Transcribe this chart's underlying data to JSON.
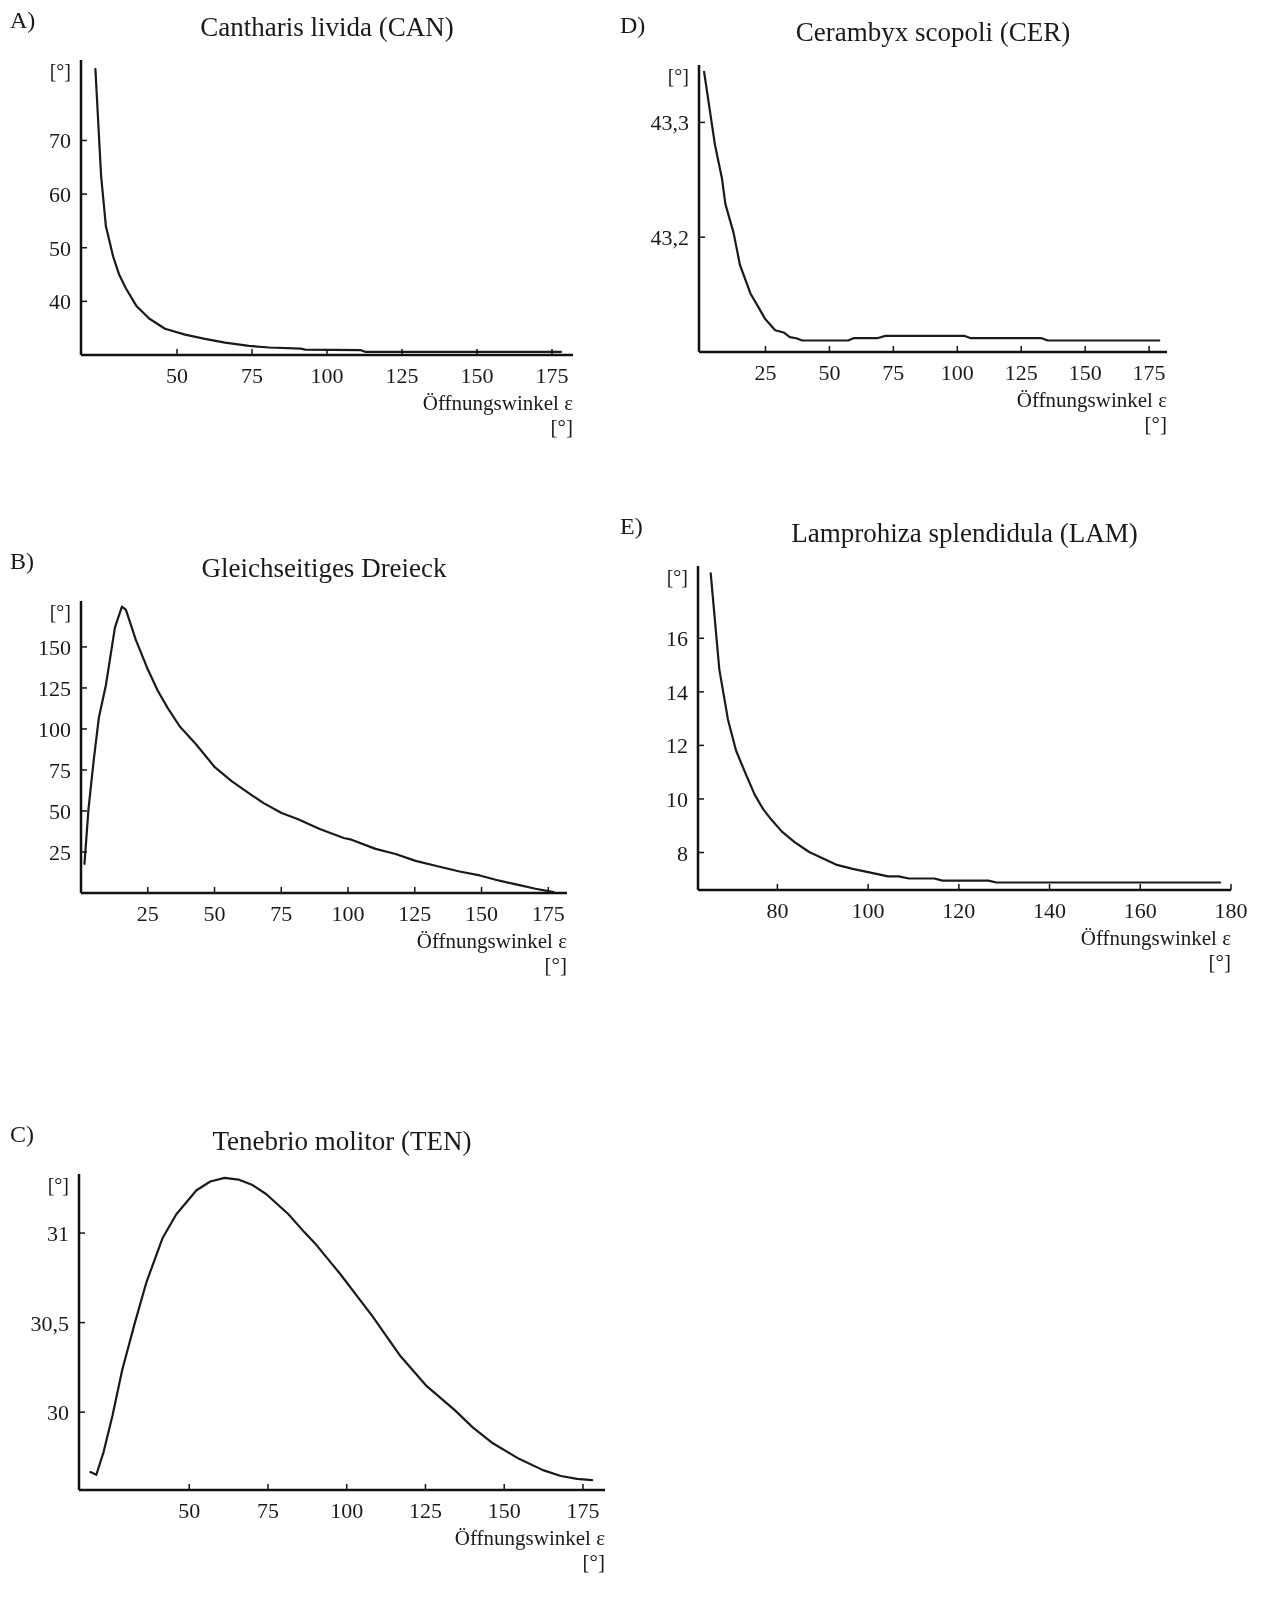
{
  "chart_data": [
    {
      "type": "line",
      "title": "Cantharis livida (CAN)",
      "annotations": [
        "A)"
      ],
      "xlabel": "Öffnungswinkel ε\n[°]",
      "ylabel": "[°]",
      "xlim": [
        18,
        182
      ],
      "ylim": [
        30,
        85
      ],
      "xticks": [
        50,
        75,
        100,
        125,
        150,
        175
      ],
      "yticks": [
        40,
        50,
        60,
        70
      ],
      "grid": false,
      "marker": "none",
      "series": [
        {
          "color": "#1a1a1a",
          "x": [
            22.8,
            24.7,
            26.3,
            28.7,
            30.7,
            33.0,
            36.4,
            40.7,
            46.0,
            52.7,
            59.3,
            66.0,
            74.0,
            80.7,
            91.3,
            92.7,
            111.3,
            112.7,
            178
          ],
          "values": [
            83.3,
            63.4,
            54.0,
            48.4,
            45.0,
            42.4,
            39.2,
            36.8,
            34.9,
            33.8,
            33.0,
            32.3,
            31.7,
            31.4,
            31.2,
            31.0,
            30.9,
            30.6,
            30.6
          ]
        }
      ]
    },
    {
      "type": "line",
      "title": "Cerambyx scopoli (CER)",
      "annotations": [
        "D)"
      ],
      "xlabel": "Öffnungswinkel ε\n[°]",
      "ylabel": "[°]",
      "xlim": [
        -1,
        182
      ],
      "ylim": [
        43.1,
        43.35
      ],
      "xticks": [
        25,
        50,
        75,
        100,
        125,
        150,
        175
      ],
      "yticks": [
        {
          "value": 43.2,
          "label": "43,2"
        },
        {
          "value": 43.3,
          "label": "43,3"
        }
      ],
      "grid": false,
      "marker": "none",
      "series": [
        {
          "color": "#1a1a1a",
          "x": [
            1.0,
            5.2,
            8.0,
            9.3,
            12.5,
            15.0,
            19.1,
            22.0,
            24.8,
            28.8,
            32.1,
            34.5,
            37.0,
            39.4,
            57.3,
            59.4,
            68.7,
            71.9,
            102.9,
            105.3,
            133.0,
            135.4,
            179
          ],
          "values": [
            43.344,
            43.281,
            43.251,
            43.229,
            43.204,
            43.176,
            43.151,
            43.14,
            43.129,
            43.119,
            43.117,
            43.113,
            43.112,
            43.11,
            43.11,
            43.112,
            43.112,
            43.114,
            43.114,
            43.112,
            43.112,
            43.11,
            43.11
          ]
        }
      ]
    },
    {
      "type": "line",
      "title": "Gleichseitiges Dreieck",
      "annotations": [
        "B)"
      ],
      "xlabel": "Öffnungswinkel ε\n[°]",
      "ylabel": "[°]",
      "xlim": [
        0,
        182
      ],
      "ylim": [
        0,
        178
      ],
      "xticks": [
        25,
        50,
        75,
        100,
        125,
        150,
        175
      ],
      "yticks": [
        25,
        50,
        75,
        100,
        125,
        150
      ],
      "grid": false,
      "marker": "none",
      "series": [
        {
          "color": "#1a1a1a",
          "x": [
            1.3,
            2.8,
            4.8,
            6.7,
            9.3,
            12.7,
            15.3,
            16.8,
            20.5,
            24.7,
            28.7,
            32.5,
            37.0,
            43.0,
            50.1,
            56.4,
            63.9,
            68.4,
            75.1,
            81.1,
            89.4,
            98.4,
            101.3,
            110.3,
            117.8,
            125.3,
            134.3,
            141.8,
            149.3,
            156.7,
            164.2,
            170.2,
            177
          ],
          "values": [
            17.8,
            51.1,
            81.5,
            107,
            126.5,
            161.8,
            174.5,
            172.7,
            154.5,
            137.5,
            123.4,
            112.7,
            101.5,
            90.8,
            76.7,
            68.2,
            59.7,
            54.8,
            48.8,
            45.1,
            39.0,
            33.5,
            32.5,
            26.9,
            23.8,
            19.6,
            16.0,
            13.1,
            10.7,
            7.5,
            4.8,
            2.6,
            0.5
          ]
        }
      ]
    },
    {
      "type": "line",
      "title": "Lamprohiza splendidula (LAM)",
      "annotations": [
        "E)"
      ],
      "xlabel": "Öffnungswinkel ε\n[°]",
      "ylabel": "[°]",
      "xlim": [
        62.5,
        180
      ],
      "ylim": [
        6.6,
        18.7
      ],
      "xticks": [
        80,
        100,
        120,
        140,
        160,
        180
      ],
      "yticks": [
        8,
        10,
        12,
        14,
        16
      ],
      "grid": false,
      "marker": "none",
      "series": [
        {
          "color": "#1a1a1a",
          "x": [
            65.3,
            67.2,
            69.1,
            70.9,
            73.2,
            75.0,
            76.9,
            78.7,
            81.0,
            83.8,
            87.0,
            90.2,
            92.9,
            96.6,
            100.8,
            104.4,
            106.7,
            109.0,
            114.6,
            116.4,
            126.5,
            128.3,
            177.6
          ],
          "values": [
            18.43,
            14.84,
            12.97,
            11.8,
            10.86,
            10.16,
            9.61,
            9.22,
            8.78,
            8.39,
            8.02,
            7.77,
            7.55,
            7.39,
            7.24,
            7.11,
            7.11,
            7.03,
            7.03,
            6.95,
            6.95,
            6.88,
            6.88
          ]
        }
      ]
    },
    {
      "type": "line",
      "title": "Tenebrio molitor (TEN)",
      "annotations": [
        "C)"
      ],
      "xlabel": "Öffnungswinkel ε\n[°]",
      "ylabel": "[°]",
      "xlim": [
        15,
        182
      ],
      "ylim": [
        29.565,
        31.33
      ],
      "xticks": [
        50,
        75,
        100,
        125,
        150,
        175
      ],
      "yticks": [
        30,
        {
          "value": 30.5,
          "label": "30,5"
        },
        31
      ],
      "grid": false,
      "marker": "none",
      "series": [
        {
          "color": "#1a1a1a",
          "x": [
            18.6,
            20.5,
            22.8,
            25.6,
            28.7,
            32.6,
            36.4,
            41.5,
            45.9,
            52.3,
            56.7,
            61.2,
            65.6,
            70.1,
            74.5,
            81.5,
            86.6,
            90.4,
            98.0,
            108.2,
            117.1,
            125.4,
            134.3,
            140.0,
            146.4,
            154.7,
            162.3,
            168.0,
            173.1,
            177.9
          ],
          "values": [
            29.665,
            29.65,
            29.777,
            29.978,
            30.234,
            30.49,
            30.725,
            30.971,
            31.105,
            31.239,
            31.288,
            31.308,
            31.299,
            31.268,
            31.217,
            31.105,
            31.004,
            30.933,
            30.77,
            30.535,
            30.312,
            30.145,
            30.011,
            29.915,
            29.826,
            29.739,
            29.676,
            29.643,
            29.627,
            29.62
          ]
        }
      ]
    }
  ]
}
